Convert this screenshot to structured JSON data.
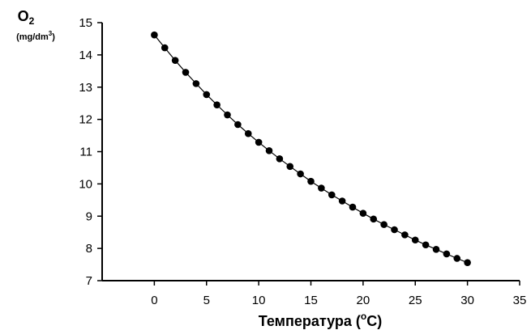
{
  "chart_data": {
    "type": "line",
    "title": "",
    "ylabel_main": "O",
    "ylabel_sub": "2",
    "ylabel_unit_prefix": "(mg/dm",
    "ylabel_unit_sup": "3",
    "ylabel_unit_suffix": ")",
    "xlabel_prefix": "Температура (",
    "xlabel_sup": "o",
    "xlabel_suffix": "C)",
    "xlim": [
      -5,
      35
    ],
    "ylim": [
      7,
      15
    ],
    "xticks": [
      0,
      5,
      10,
      15,
      20,
      25,
      30,
      35
    ],
    "yticks": [
      7,
      8,
      9,
      10,
      11,
      12,
      13,
      14,
      15
    ],
    "grid": false,
    "legend": "none",
    "marker": "circle",
    "line_color": "#000000",
    "marker_color": "#000000",
    "series": [
      {
        "x": [
          0,
          1,
          2,
          3,
          4,
          5,
          6,
          7,
          8,
          9,
          10,
          11,
          12,
          13,
          14,
          15,
          16,
          17,
          18,
          19,
          20,
          21,
          22,
          23,
          24,
          25,
          26,
          27,
          28,
          29,
          30
        ],
        "values": [
          14.62,
          14.22,
          13.83,
          13.46,
          13.11,
          12.77,
          12.45,
          12.14,
          11.84,
          11.56,
          11.29,
          11.03,
          10.78,
          10.54,
          10.31,
          10.08,
          9.87,
          9.66,
          9.47,
          9.28,
          9.09,
          8.91,
          8.74,
          8.58,
          8.42,
          8.26,
          8.11,
          7.97,
          7.83,
          7.69,
          7.56
        ]
      }
    ]
  }
}
